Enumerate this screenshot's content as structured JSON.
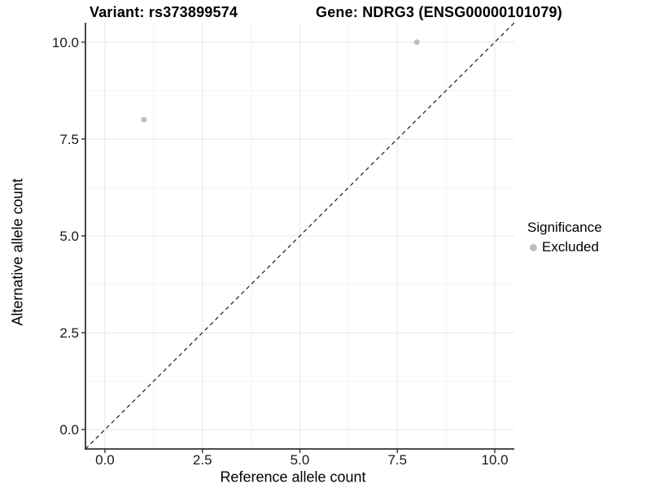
{
  "chart_data": {
    "type": "scatter",
    "title_left": "Variant: rs373899574",
    "title_right": "Gene: NDRG3 (ENSG00000101079)",
    "xlabel": "Reference allele count",
    "ylabel": "Alternative allele count",
    "xlim": [
      -0.5,
      10.5
    ],
    "ylim": [
      -0.5,
      10.5
    ],
    "x_ticks": [
      0.0,
      2.5,
      5.0,
      7.5,
      10.0
    ],
    "x_tick_labels": [
      "0.0",
      "2.5",
      "5.0",
      "7.5",
      "10.0"
    ],
    "y_ticks": [
      0.0,
      2.5,
      5.0,
      7.5,
      10.0
    ],
    "y_tick_labels": [
      "0.0",
      "2.5",
      "5.0",
      "7.5",
      "10.0"
    ],
    "x_minor_ticks": [
      1.25,
      3.75,
      6.25,
      8.75
    ],
    "y_minor_ticks": [
      1.25,
      3.75,
      6.25,
      8.75
    ],
    "series": [
      {
        "name": "Excluded",
        "color": "#bebebe",
        "points": [
          [
            1,
            8
          ],
          [
            8,
            10
          ]
        ]
      }
    ],
    "reference_line": {
      "slope": 1,
      "intercept": 0,
      "style": "dashed",
      "color": "#1a1a1a"
    },
    "legend": {
      "title": "Significance",
      "position": "right"
    },
    "grid": {
      "major": true,
      "minor": true
    },
    "style": {
      "background": "#ffffff",
      "major_grid_color": "#e7e7e7",
      "minor_grid_color": "#f2f2f2",
      "axis_line_color": "#333333",
      "tick_color": "#333333",
      "tick_label_color": "#1a1a1a",
      "point_color": "#bebebe"
    }
  }
}
